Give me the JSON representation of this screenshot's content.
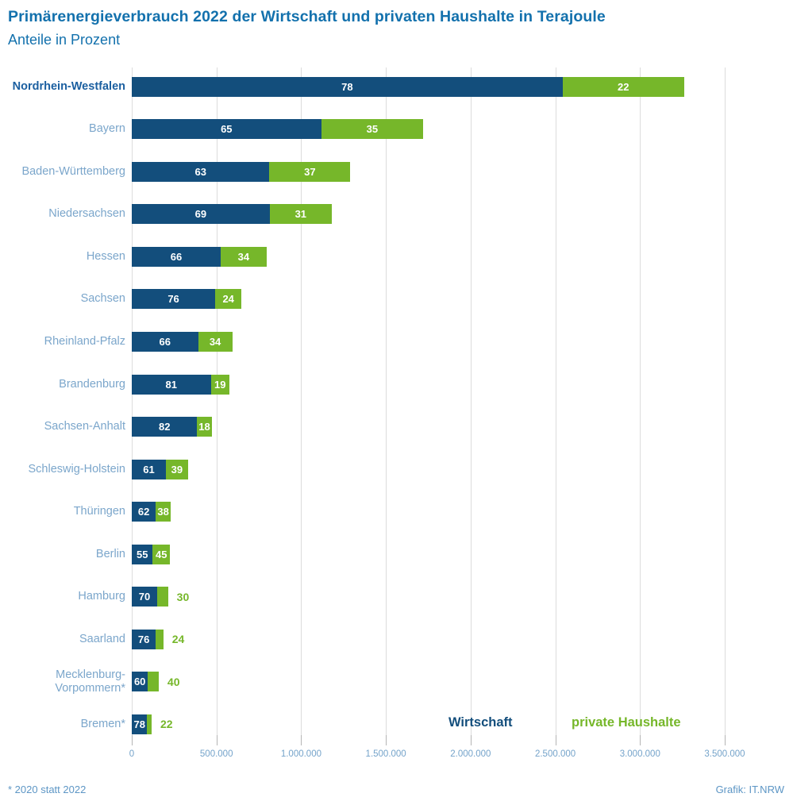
{
  "header": {
    "title": "Primärenergieverbrauch 2022 der Wirtschaft und privaten Haushalte in Terajoule",
    "subtitle": "Anteile in Prozent"
  },
  "legend": {
    "wirtschaft": "Wirtschaft",
    "haushalte": "private Haushalte"
  },
  "footer": {
    "footnote": "* 2020 statt 2022",
    "credit": "Grafik: IT.NRW"
  },
  "colors": {
    "title": "#1371ad",
    "bar_wirtschaft": "#134e7c",
    "bar_haushalte": "#76b72a",
    "state_label": "#7ba6cb",
    "state_label_highlight": "#1b5fa0",
    "grid": "#dcdcdc",
    "tick_label": "#74a3ca",
    "value_text": "#ffffff",
    "footer_text": "#5d96c5"
  },
  "chart_data": {
    "type": "bar",
    "orientation": "horizontal",
    "stacked": true,
    "title": "Primärenergieverbrauch 2022 der Wirtschaft und privaten Haushalte in Terajoule",
    "subtitle": "Anteile in Prozent",
    "unit": "Terajoule",
    "value_labels": "percent",
    "grid": true,
    "legend_position": "bottom-right-inside",
    "xlim": [
      0,
      3500000
    ],
    "xticks": [
      {
        "value": 0,
        "label": "0"
      },
      {
        "value": 500000,
        "label": "500.000"
      },
      {
        "value": 1000000,
        "label": "1.000.000"
      },
      {
        "value": 1500000,
        "label": "1.500.000"
      },
      {
        "value": 2000000,
        "label": "2.000.000"
      },
      {
        "value": 2500000,
        "label": "2.500.000"
      },
      {
        "value": 3000000,
        "label": "3.000.000"
      },
      {
        "value": 3500000,
        "label": "3.500.000"
      }
    ],
    "series": [
      {
        "name": "Wirtschaft",
        "color": "#134e7c"
      },
      {
        "name": "private Haushalte",
        "color": "#76b72a"
      }
    ],
    "rows": [
      {
        "land": "Nordrhein-Westfalen",
        "wirtschaft_pct": 78,
        "haushalte_pct": 22,
        "total_tj_estimated": 3260000,
        "highlight": true,
        "haushalte_label_pos": "inside"
      },
      {
        "land": "Bayern",
        "wirtschaft_pct": 65,
        "haushalte_pct": 35,
        "total_tj_estimated": 1720000,
        "highlight": false,
        "haushalte_label_pos": "inside"
      },
      {
        "land": "Baden-Württemberg",
        "wirtschaft_pct": 63,
        "haushalte_pct": 37,
        "total_tj_estimated": 1290000,
        "highlight": false,
        "haushalte_label_pos": "inside"
      },
      {
        "land": "Niedersachsen",
        "wirtschaft_pct": 69,
        "haushalte_pct": 31,
        "total_tj_estimated": 1180000,
        "highlight": false,
        "haushalte_label_pos": "inside"
      },
      {
        "land": "Hessen",
        "wirtschaft_pct": 66,
        "haushalte_pct": 34,
        "total_tj_estimated": 795000,
        "highlight": false,
        "haushalte_label_pos": "inside"
      },
      {
        "land": "Sachsen",
        "wirtschaft_pct": 76,
        "haushalte_pct": 24,
        "total_tj_estimated": 648000,
        "highlight": false,
        "haushalte_label_pos": "inside"
      },
      {
        "land": "Rheinland-Pfalz",
        "wirtschaft_pct": 66,
        "haushalte_pct": 34,
        "total_tj_estimated": 593000,
        "highlight": false,
        "haushalte_label_pos": "inside"
      },
      {
        "land": "Brandenburg",
        "wirtschaft_pct": 81,
        "haushalte_pct": 19,
        "total_tj_estimated": 576000,
        "highlight": false,
        "haushalte_label_pos": "inside"
      },
      {
        "land": "Sachsen-Anhalt",
        "wirtschaft_pct": 82,
        "haushalte_pct": 18,
        "total_tj_estimated": 471000,
        "highlight": false,
        "haushalte_label_pos": "inside"
      },
      {
        "land": "Schleswig-Holstein",
        "wirtschaft_pct": 61,
        "haushalte_pct": 39,
        "total_tj_estimated": 331000,
        "highlight": false,
        "haushalte_label_pos": "inside"
      },
      {
        "land": "Thüringen",
        "wirtschaft_pct": 62,
        "haushalte_pct": 38,
        "total_tj_estimated": 229000,
        "highlight": false,
        "haushalte_label_pos": "inside"
      },
      {
        "land": "Berlin",
        "wirtschaft_pct": 55,
        "haushalte_pct": 45,
        "total_tj_estimated": 225000,
        "highlight": false,
        "haushalte_label_pos": "inside"
      },
      {
        "land": "Hamburg",
        "wirtschaft_pct": 70,
        "haushalte_pct": 30,
        "total_tj_estimated": 214000,
        "highlight": false,
        "haushalte_label_pos": "outside"
      },
      {
        "land": "Saarland",
        "wirtschaft_pct": 76,
        "haushalte_pct": 24,
        "total_tj_estimated": 186000,
        "highlight": false,
        "haushalte_label_pos": "outside"
      },
      {
        "land": "Mecklenburg-\nVorpommern*",
        "wirtschaft_pct": 60,
        "haushalte_pct": 40,
        "total_tj_estimated": 159000,
        "highlight": false,
        "haushalte_label_pos": "outside"
      },
      {
        "land": "Bremen*",
        "wirtschaft_pct": 78,
        "haushalte_pct": 22,
        "total_tj_estimated": 117000,
        "highlight": false,
        "haushalte_label_pos": "outside"
      }
    ]
  }
}
